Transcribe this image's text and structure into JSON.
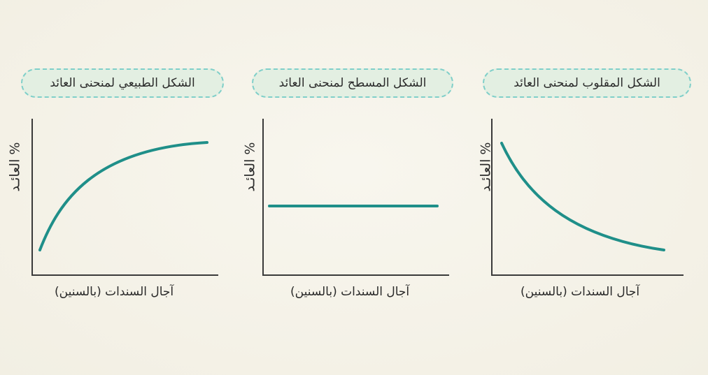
{
  "panels": [
    {
      "title": "الشكل الطبيعي لمنحنى العائد",
      "ylabel": "% العائـد",
      "xlabel": "آجال السندات (بالسنين)",
      "curve": "normal"
    },
    {
      "title": "الشكل المسطح لمنحنى العائد",
      "ylabel": "% العائـد",
      "xlabel": "آجال السندات (بالسنين)",
      "curve": "flat"
    },
    {
      "title": "الشكل المقلوب لمنحنى العائد",
      "ylabel": "% العائـد",
      "xlabel": "آجال السندات (بالسنين)",
      "curve": "inverted"
    }
  ],
  "colors": {
    "curve": "#1f8f89",
    "axis": "#3a3a3a",
    "pill_border": "#7fcfc9",
    "pill_fill": "#e3efe2"
  }
}
